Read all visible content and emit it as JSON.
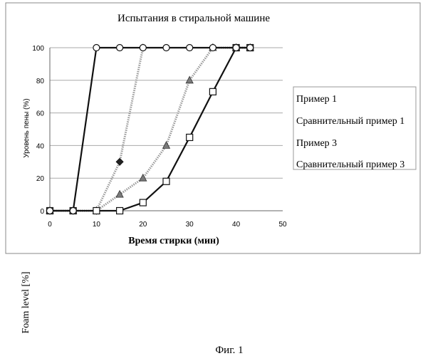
{
  "chart_data": {
    "type": "line",
    "title": "Испытания в стиральной машине",
    "xlabel": "Время стирки (мин)",
    "ylabel": "Уровень пены (%)",
    "xlim": [
      0,
      50
    ],
    "ylim": [
      0,
      100
    ],
    "x_ticks": [
      "0",
      "10",
      "20",
      "30",
      "40",
      "50"
    ],
    "y_ticks": [
      "0",
      "20",
      "40",
      "60",
      "80",
      "100"
    ],
    "grid": "horizontal",
    "legend_position": "right",
    "series": [
      {
        "name": "Пример 1",
        "marker": "circle",
        "line": "solid-black",
        "x": [
          0,
          5,
          10,
          15,
          20,
          25,
          30,
          35,
          40,
          43
        ],
        "y": [
          0,
          0,
          100,
          100,
          100,
          100,
          100,
          100,
          100,
          100
        ]
      },
      {
        "name": "Сравнительный пример 1",
        "marker": "diamond",
        "line": "dotted-grey",
        "x": [
          0,
          5,
          10,
          15,
          20
        ],
        "y": [
          0,
          0,
          0,
          30,
          100
        ]
      },
      {
        "name": "Пример 3",
        "marker": "triangle",
        "line": "dotted-grey",
        "x": [
          0,
          5,
          10,
          15,
          20,
          25,
          30,
          35,
          40,
          43
        ],
        "y": [
          0,
          0,
          0,
          10,
          20,
          40,
          80,
          100,
          100,
          100
        ]
      },
      {
        "name": "Сравнительный пример 3",
        "marker": "square",
        "line": "solid-black",
        "x": [
          0,
          5,
          10,
          15,
          20,
          25,
          30,
          35,
          40,
          43
        ],
        "y": [
          0,
          0,
          0,
          0,
          5,
          18,
          45,
          73,
          100,
          100
        ]
      }
    ]
  },
  "side_label": "Foam level [%]",
  "figure_caption": "Фиг. 1",
  "colors": {
    "frame": "#888888",
    "grid": "#aaaaaa",
    "solid_line": "#111111",
    "dotted_line": "#9a9a9a",
    "triangle_fill": "#7a7a7a",
    "diamond_fill": "#222222"
  }
}
